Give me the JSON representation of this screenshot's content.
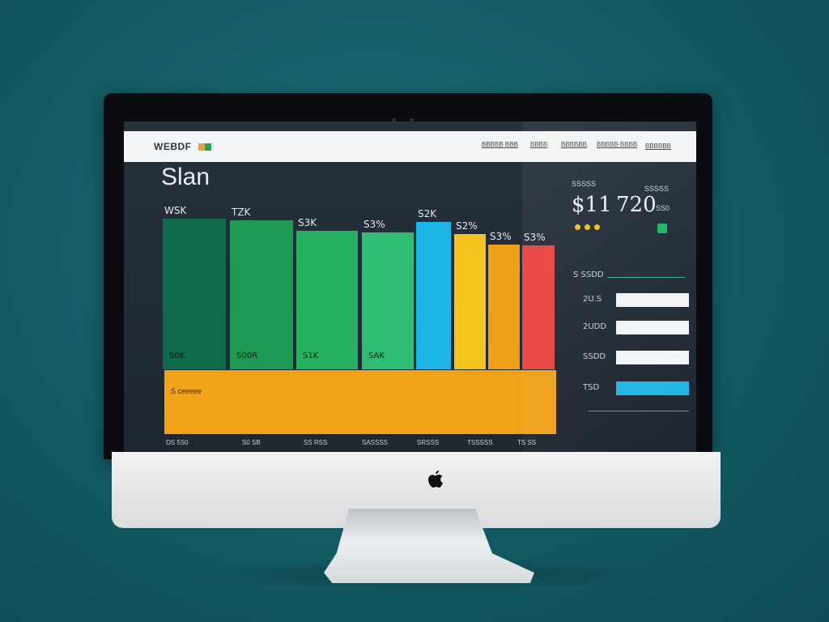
{
  "header": {
    "brand": "WEBDF",
    "nav": [
      "BBBBB BBB",
      "BBBB",
      "BBBBBB",
      "BBBBB BBBB",
      "BBBBBB"
    ]
  },
  "dashboard": {
    "title": "Slan",
    "bars": [
      {
        "top_label": "WSK",
        "inner_label": "S0K",
        "color": "#0f6b49",
        "level": 1.0
      },
      {
        "top_label": "TZK",
        "inner_label": "S00R",
        "color": "#1e9a55",
        "level": 0.99
      },
      {
        "top_label": "S3K",
        "inner_label": "S1K",
        "color": "#25b062",
        "level": 0.92
      },
      {
        "top_label": "S3%",
        "inner_label": "SAK",
        "color": "#2dbd73",
        "level": 0.91
      },
      {
        "top_label": "S2K",
        "inner_label": "",
        "color": "#1cb6e6",
        "level": 0.98
      },
      {
        "top_label": "S2%",
        "inner_label": "",
        "color": "#f5c31e",
        "level": 0.9
      },
      {
        "top_label": "S3%",
        "inner_label": "",
        "color": "#eda11a",
        "level": 0.83
      },
      {
        "top_label": "S3%",
        "inner_label": "",
        "color": "#e74441",
        "level": 0.82
      }
    ],
    "band_label": "S ceeeee",
    "axis_labels": [
      "DS 5S0",
      "S0 SB",
      "SS RSS",
      "SASSSS",
      "SRSSS",
      "TSSSSS",
      "TS SS"
    ]
  },
  "right_panel": {
    "small_left": "SSSSS",
    "small_right": "SSSSS",
    "stat1": "$11",
    "stat2": "720",
    "stat2_unit": "SS0",
    "section_title": "S SSDD",
    "rows": [
      {
        "label": "2U.S",
        "fill": 1.0,
        "color": "#f2f4f6"
      },
      {
        "label": "2UDD",
        "fill": 1.0,
        "color": "#f2f4f6"
      },
      {
        "label": "SSDD",
        "fill": 1.0,
        "color": "#f2f4f6"
      },
      {
        "label": "TSD",
        "fill": 1.0,
        "color": "#21b6e3"
      }
    ],
    "accent": "#2fb28b"
  },
  "device": {
    "logo": "apple-logo-icon"
  }
}
